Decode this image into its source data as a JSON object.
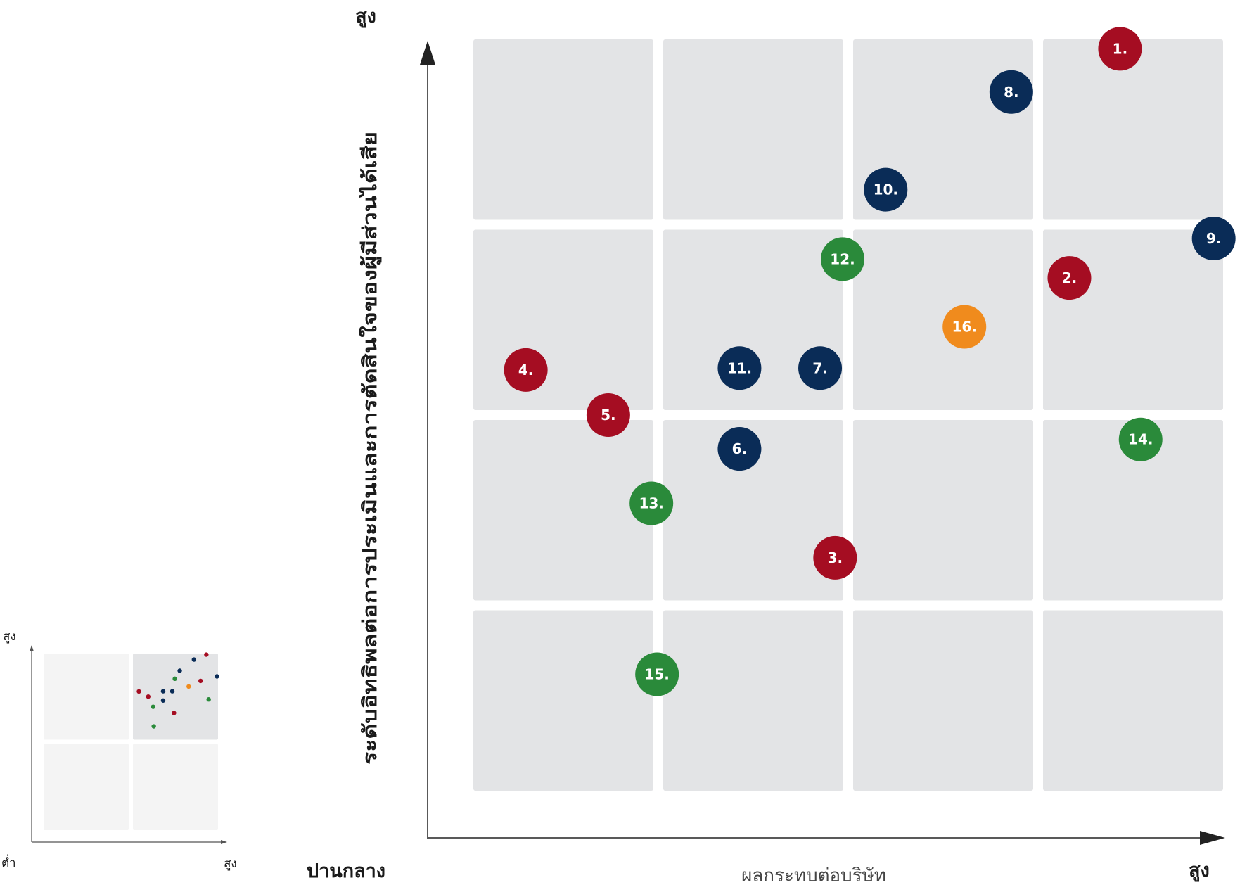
{
  "colors": {
    "red": "#a50d22",
    "navy": "#0a2c57",
    "green": "#2a8a3a",
    "orange": "#f08b1d",
    "cell": "#e3e4e6",
    "mini_cell_light": "#f4f4f4",
    "mini_cell_dark": "#e3e4e6"
  },
  "chart_data": {
    "type": "scatter",
    "ylabel": "ระดับอิทธิพลต่อการประเมินและการตัดสินใจของผู้มีส่วนได้เสีย",
    "xlabel": "ผลกระทบต่อบริษัท",
    "y_high_label": "สูง",
    "x_low_label": "ปานกลาง",
    "x_high_label": "สูง",
    "xlim": [
      0,
      4
    ],
    "ylim": [
      0,
      4
    ],
    "grid": "4x4 cells",
    "points": [
      {
        "label": "1.",
        "x": 3.45,
        "y": 3.95,
        "color": "red"
      },
      {
        "label": "2.",
        "x": 3.18,
        "y": 2.73,
        "color": "red"
      },
      {
        "label": "3.",
        "x": 1.93,
        "y": 1.24,
        "color": "red"
      },
      {
        "label": "4.",
        "x": 0.28,
        "y": 2.24,
        "color": "red"
      },
      {
        "label": "5.",
        "x": 0.72,
        "y": 2.0,
        "color": "red"
      },
      {
        "label": "6.",
        "x": 1.42,
        "y": 1.82,
        "color": "navy"
      },
      {
        "label": "7.",
        "x": 1.85,
        "y": 2.25,
        "color": "navy"
      },
      {
        "label": "8.",
        "x": 2.87,
        "y": 3.72,
        "color": "navy"
      },
      {
        "label": "9.",
        "x": 3.95,
        "y": 2.94,
        "color": "navy"
      },
      {
        "label": "10.",
        "x": 2.2,
        "y": 3.2,
        "color": "navy"
      },
      {
        "label": "11.",
        "x": 1.42,
        "y": 2.25,
        "color": "navy"
      },
      {
        "label": "12.",
        "x": 1.97,
        "y": 2.83,
        "color": "green"
      },
      {
        "label": "13.",
        "x": 0.95,
        "y": 1.53,
        "color": "green"
      },
      {
        "label": "14.",
        "x": 3.56,
        "y": 1.87,
        "color": "green"
      },
      {
        "label": "15.",
        "x": 0.98,
        "y": 0.62,
        "color": "green"
      },
      {
        "label": "16.",
        "x": 2.62,
        "y": 2.47,
        "color": "orange"
      }
    ]
  },
  "mini_chart": {
    "y_high_label": "สูง",
    "x_low_label": "ต่ำ",
    "x_high_label": "สูง",
    "highlighted_quadrant": "top-right"
  }
}
